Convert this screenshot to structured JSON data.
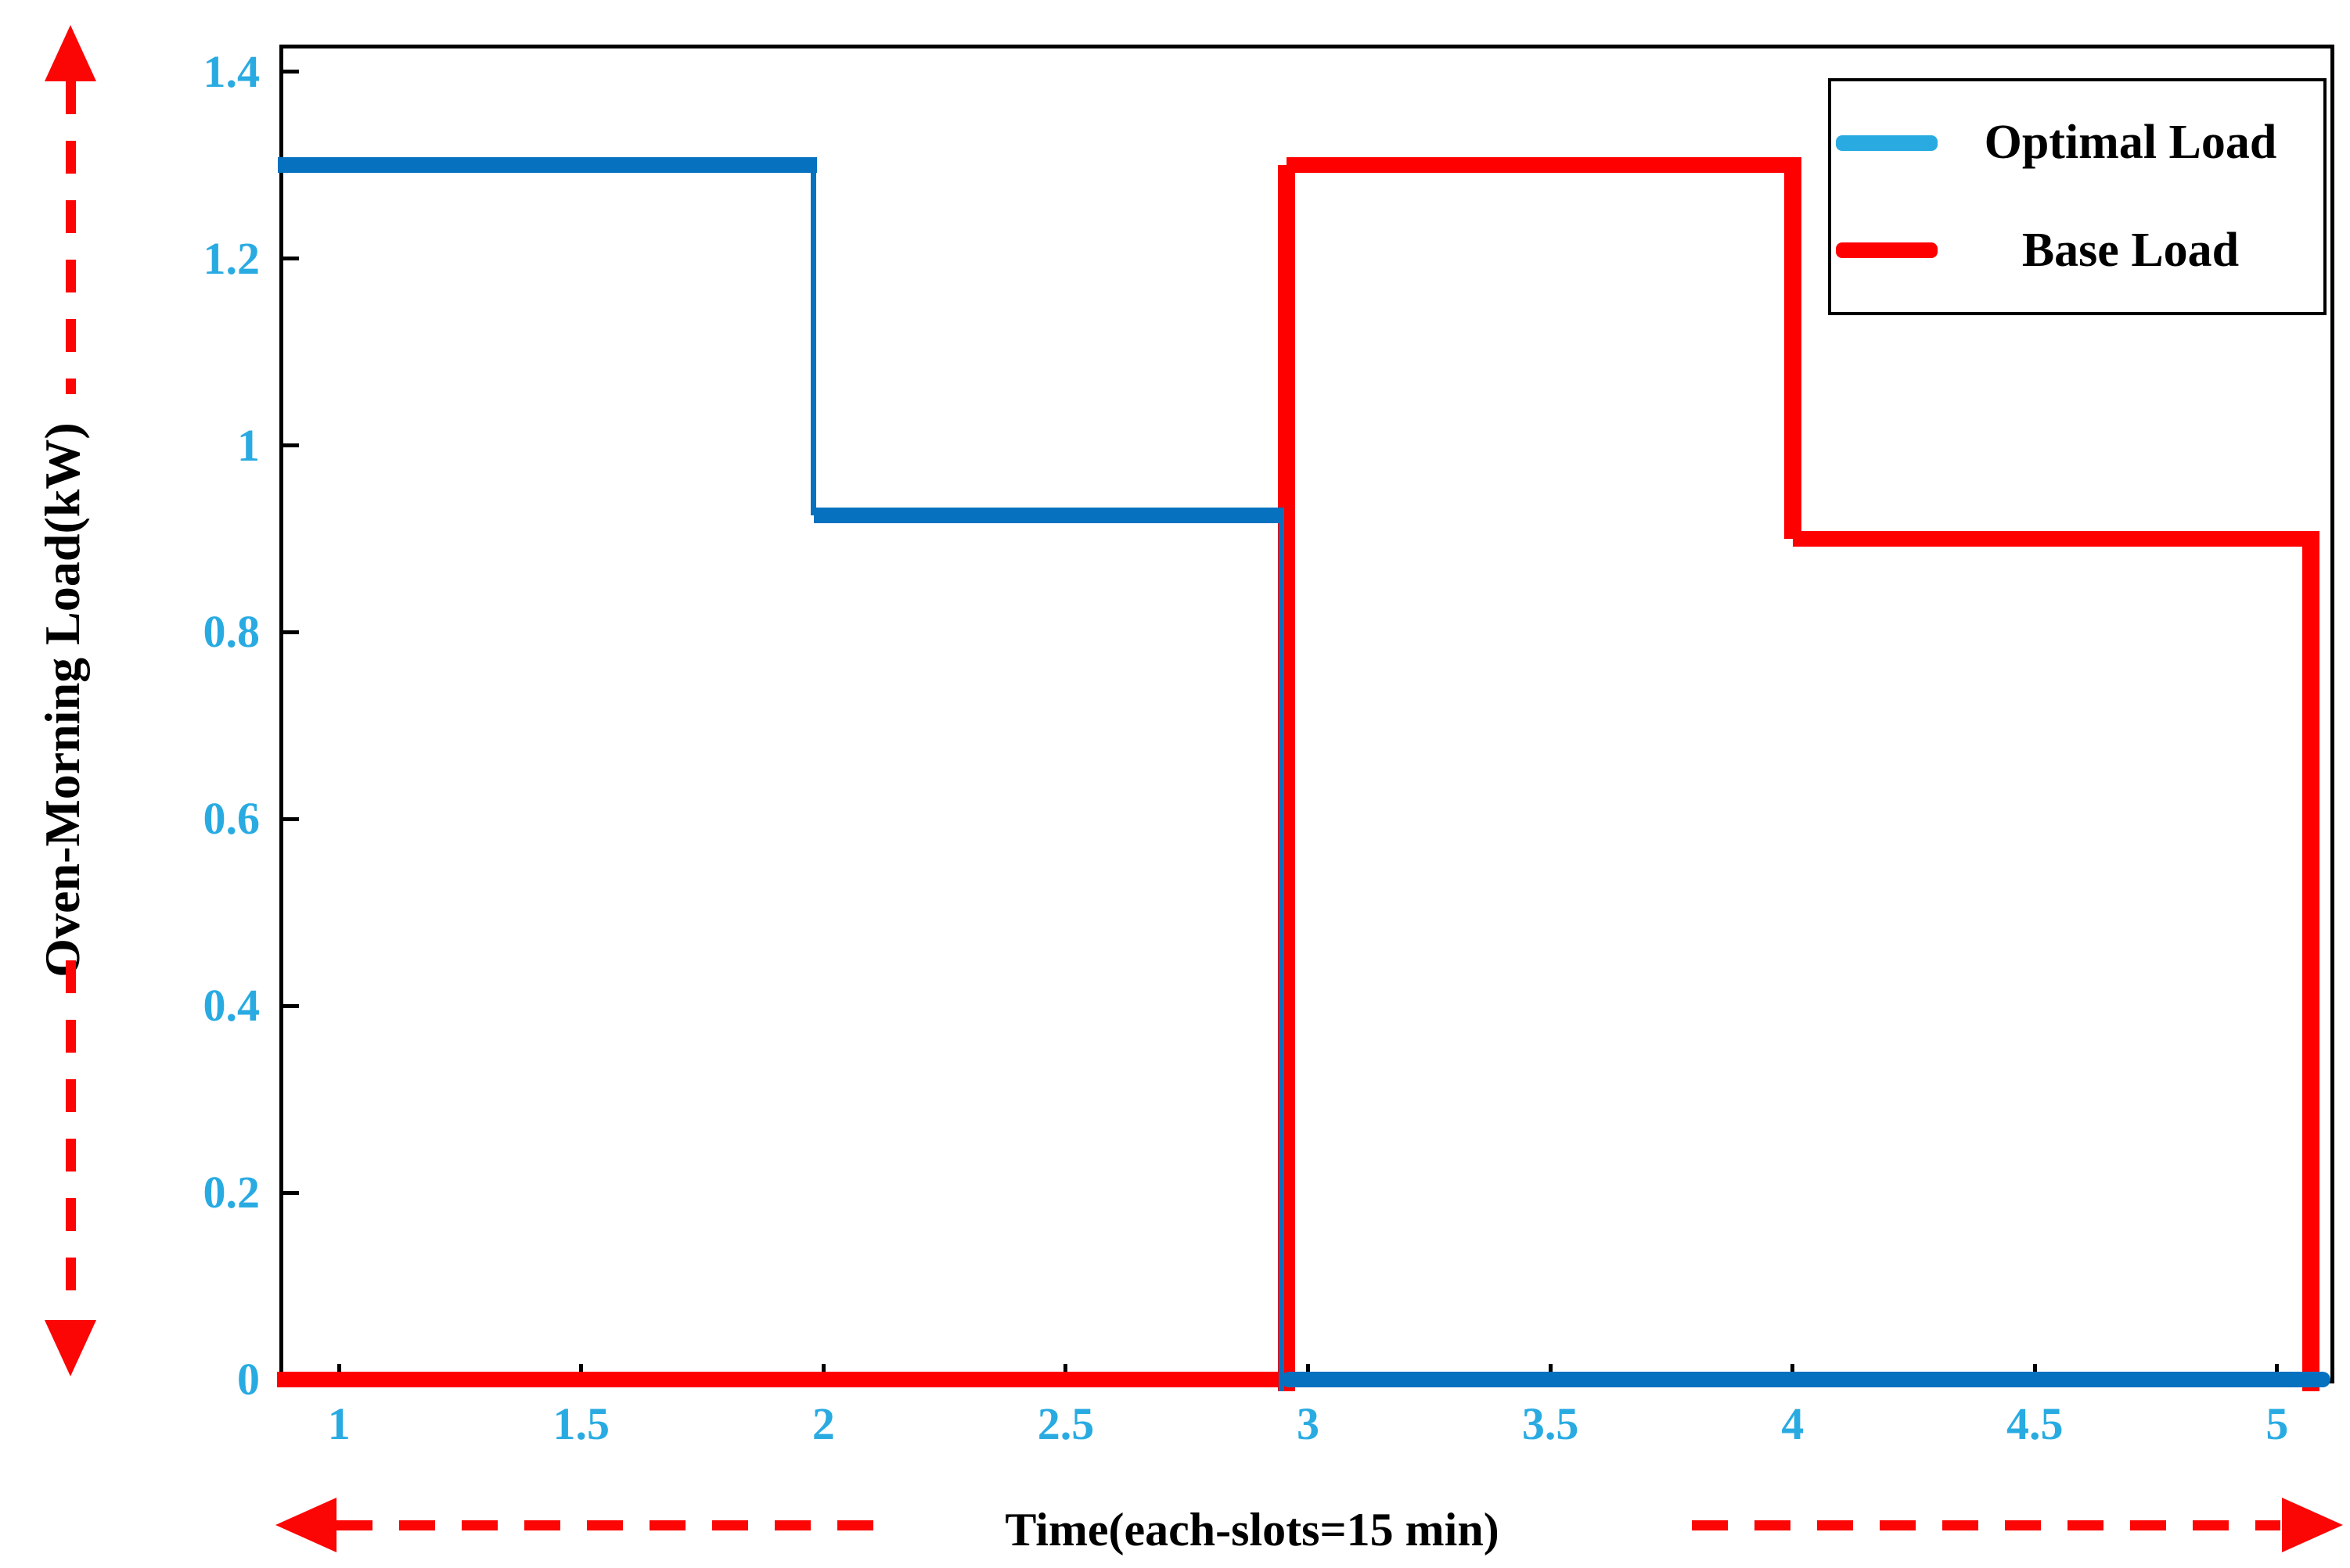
{
  "axes": {
    "xlabel": "Time(each-slots=15 min)",
    "ylabel": "Oven-Morning Load(kW)",
    "tick_label_color": "#29abe2",
    "axis_color": "#000000",
    "background": "#ffffff"
  },
  "legend": {
    "items": [
      {
        "label": "Optimal Load",
        "sample_color": "#29abe2"
      },
      {
        "label": "Base Load",
        "sample_color": "#fe0000"
      }
    ]
  },
  "annotations": {
    "arrow_color": "#fb0505",
    "left_vertical_double_arrow": "spans full height of y-axis, dashed, arrowheads up and down",
    "bottom_horizontal_arrows": "two dashed arrows flanking the x-axis title, pointing outward left and right"
  },
  "chart_data": {
    "type": "step",
    "title": "",
    "xlabel": "Time(each-slots=15 min)",
    "ylabel": "Oven-Morning Load(kW)",
    "xlim": [
      0.885,
      5.11
    ],
    "ylim": [
      0,
      1.425
    ],
    "xticks": [
      1,
      1.5,
      2,
      2.5,
      3,
      3.5,
      4,
      4.5,
      5
    ],
    "yticks": [
      0,
      0.2,
      0.4,
      0.6,
      0.8,
      1,
      1.2,
      1.4
    ],
    "grid": false,
    "legend_position": "top-right",
    "series": [
      {
        "name": "Base Load",
        "color": "#fe0000",
        "line_width": 20,
        "vertical_line_width": 22,
        "points": [
          [
            0.872,
            0
          ],
          [
            2.955,
            0
          ],
          [
            2.955,
            1.3
          ],
          [
            4.0,
            1.3
          ],
          [
            4.0,
            0.9
          ],
          [
            5.07,
            0.9
          ],
          [
            5.07,
            0
          ]
        ]
      },
      {
        "name": "Optimal Load",
        "color": "#0671bf",
        "line_width": 20,
        "vertical_line_width": 7,
        "points": [
          [
            0.873,
            1.3
          ],
          [
            1.98,
            1.3
          ],
          [
            1.98,
            0.925
          ],
          [
            2.945,
            0.925
          ],
          [
            2.945,
            0
          ],
          [
            5.105,
            0
          ]
        ]
      }
    ]
  }
}
